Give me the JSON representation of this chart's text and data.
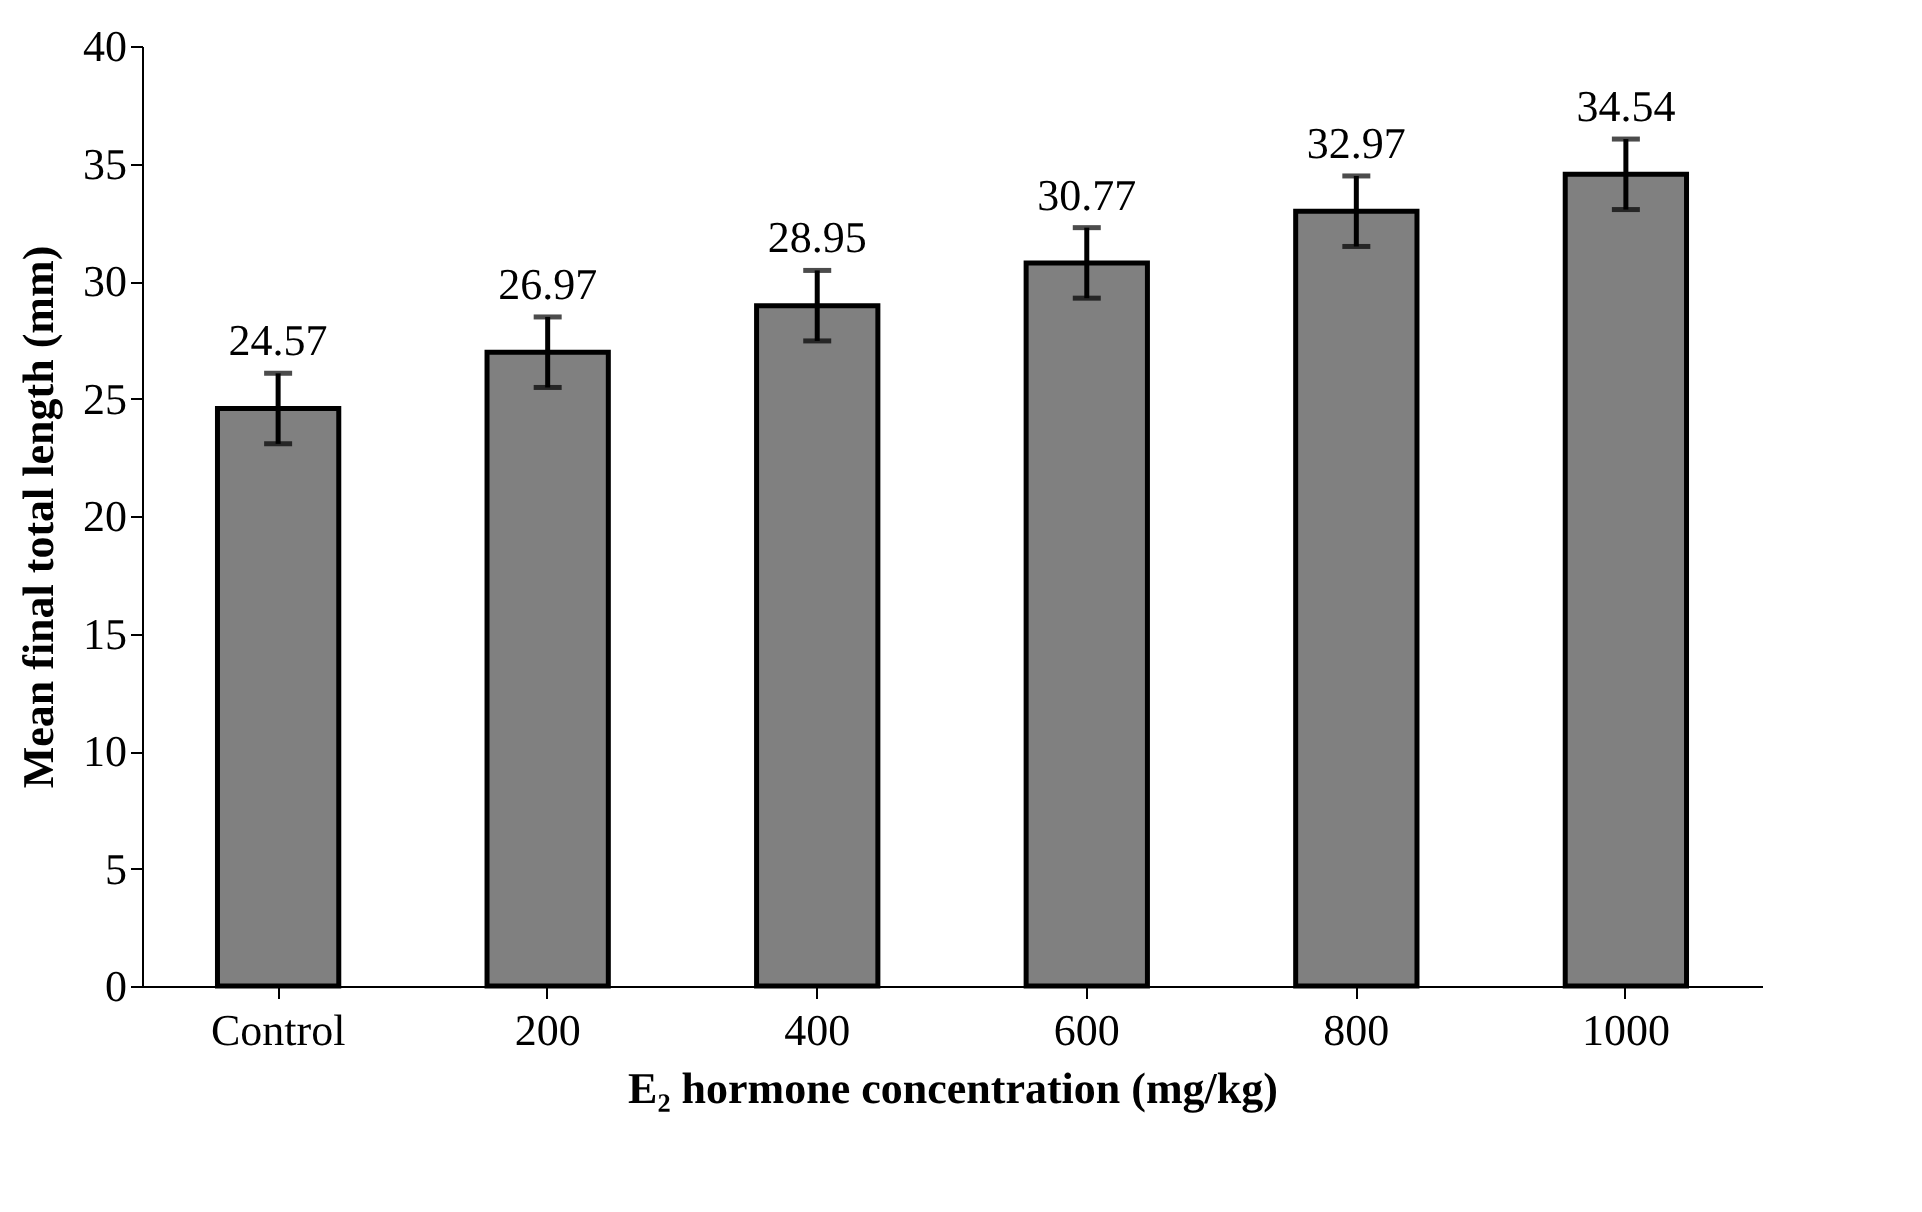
{
  "chart_data": {
    "type": "bar",
    "xlabel": "E₂ hormone concentration (mg/kg)",
    "ylabel": "Mean final total length (mm)",
    "categories": [
      "Control",
      "200",
      "400",
      "600",
      "800",
      "1000"
    ],
    "values": [
      24.57,
      26.97,
      28.95,
      30.77,
      32.97,
      34.54
    ],
    "errors": [
      1.5,
      1.5,
      1.5,
      1.5,
      1.5,
      1.5
    ],
    "color": "#808080",
    "data_labels": true,
    "grid": false,
    "ylim": [
      0,
      40
    ],
    "yticks": [
      0,
      5,
      10,
      15,
      20,
      25,
      30,
      35,
      40
    ]
  }
}
